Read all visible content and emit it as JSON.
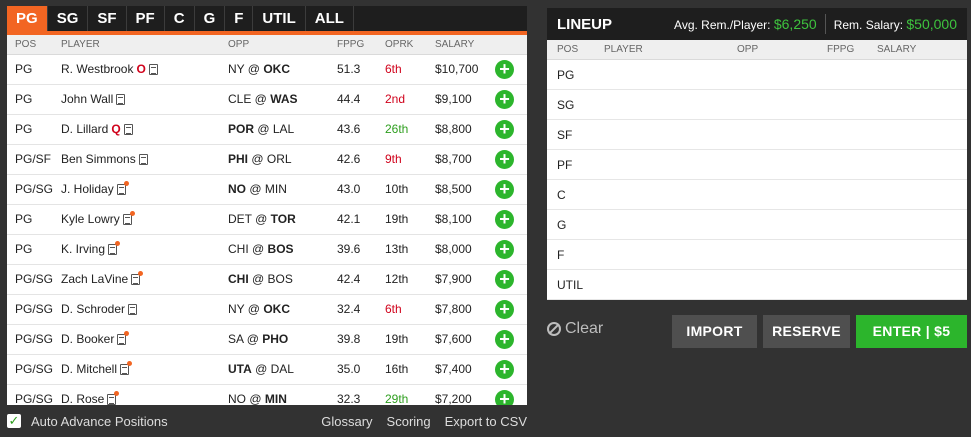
{
  "tabs": [
    "PG",
    "SG",
    "SF",
    "PF",
    "C",
    "G",
    "F",
    "UTIL",
    "ALL"
  ],
  "active_tab": "PG",
  "pool_headers": {
    "pos": "POS",
    "player": "PLAYER",
    "opp": "OPP",
    "fppg": "FPPG",
    "oprk": "OPRK",
    "salary": "SALARY"
  },
  "players": [
    {
      "pos": "PG",
      "name": "R. Westbrook",
      "status": "O",
      "news_alert": false,
      "opp_away": "NY",
      "opp_home": "OKC",
      "bold": "home",
      "fppg": "51.3",
      "oprk": "6th",
      "oprk_color": "red",
      "salary": "$10,700"
    },
    {
      "pos": "PG",
      "name": "John Wall",
      "status": "",
      "news_alert": false,
      "opp_away": "CLE",
      "opp_home": "WAS",
      "bold": "home",
      "fppg": "44.4",
      "oprk": "2nd",
      "oprk_color": "red",
      "salary": "$9,100"
    },
    {
      "pos": "PG",
      "name": "D. Lillard",
      "status": "Q",
      "news_alert": false,
      "opp_away": "POR",
      "opp_home": "LAL",
      "bold": "away",
      "fppg": "43.6",
      "oprk": "26th",
      "oprk_color": "green",
      "salary": "$8,800"
    },
    {
      "pos": "PG/SF",
      "name": "Ben Simmons",
      "status": "",
      "news_alert": false,
      "opp_away": "PHI",
      "opp_home": "ORL",
      "bold": "away",
      "fppg": "42.6",
      "oprk": "9th",
      "oprk_color": "red",
      "salary": "$8,700"
    },
    {
      "pos": "PG/SG",
      "name": "J. Holiday",
      "status": "",
      "news_alert": true,
      "opp_away": "NO",
      "opp_home": "MIN",
      "bold": "away",
      "fppg": "43.0",
      "oprk": "10th",
      "oprk_color": "neutral",
      "salary": "$8,500"
    },
    {
      "pos": "PG",
      "name": "Kyle Lowry",
      "status": "",
      "news_alert": true,
      "opp_away": "DET",
      "opp_home": "TOR",
      "bold": "home",
      "fppg": "42.1",
      "oprk": "19th",
      "oprk_color": "neutral",
      "salary": "$8,100"
    },
    {
      "pos": "PG",
      "name": "K. Irving",
      "status": "",
      "news_alert": true,
      "opp_away": "CHI",
      "opp_home": "BOS",
      "bold": "home",
      "fppg": "39.6",
      "oprk": "13th",
      "oprk_color": "neutral",
      "salary": "$8,000"
    },
    {
      "pos": "PG/SG",
      "name": "Zach LaVine",
      "status": "",
      "news_alert": true,
      "opp_away": "CHI",
      "opp_home": "BOS",
      "bold": "away",
      "fppg": "42.4",
      "oprk": "12th",
      "oprk_color": "neutral",
      "salary": "$7,900"
    },
    {
      "pos": "PG/SG",
      "name": "D. Schroder",
      "status": "",
      "news_alert": false,
      "opp_away": "NY",
      "opp_home": "OKC",
      "bold": "home",
      "fppg": "32.4",
      "oprk": "6th",
      "oprk_color": "red",
      "salary": "$7,800"
    },
    {
      "pos": "PG/SG",
      "name": "D. Booker",
      "status": "",
      "news_alert": true,
      "opp_away": "SA",
      "opp_home": "PHO",
      "bold": "home",
      "fppg": "39.8",
      "oprk": "19th",
      "oprk_color": "neutral",
      "salary": "$7,600"
    },
    {
      "pos": "PG/SG",
      "name": "D. Mitchell",
      "status": "",
      "news_alert": true,
      "opp_away": "UTA",
      "opp_home": "DAL",
      "bold": "away",
      "fppg": "35.0",
      "oprk": "16th",
      "oprk_color": "neutral",
      "salary": "$7,400"
    },
    {
      "pos": "PG/SG",
      "name": "D. Rose",
      "status": "",
      "news_alert": true,
      "opp_away": "NO",
      "opp_home": "MIN",
      "bold": "home",
      "fppg": "32.3",
      "oprk": "29th",
      "oprk_color": "green",
      "salary": "$7,200"
    }
  ],
  "add_symbol": "+",
  "footer": {
    "checkbox_mark": "✓",
    "auto_advance": "Auto Advance Positions",
    "glossary": "Glossary",
    "scoring": "Scoring",
    "export": "Export to CSV"
  },
  "lineup": {
    "title": "LINEUP",
    "avg_label": "Avg. Rem./Player:",
    "avg_value": "$6,250",
    "rem_label": "Rem. Salary:",
    "rem_value": "$50,000",
    "headers": {
      "pos": "POS",
      "player": "PLAYER",
      "opp": "OPP",
      "fppg": "FPPG",
      "salary": "SALARY"
    },
    "slots": [
      "PG",
      "SG",
      "SF",
      "PF",
      "C",
      "G",
      "F",
      "UTIL"
    ]
  },
  "actions": {
    "clear": "Clear",
    "import": "IMPORT",
    "reserve": "RESERVE",
    "enter": "ENTER | $5"
  },
  "colors": {
    "accent": "#f26522",
    "green": "#2cb52c",
    "red": "#d0021b"
  }
}
